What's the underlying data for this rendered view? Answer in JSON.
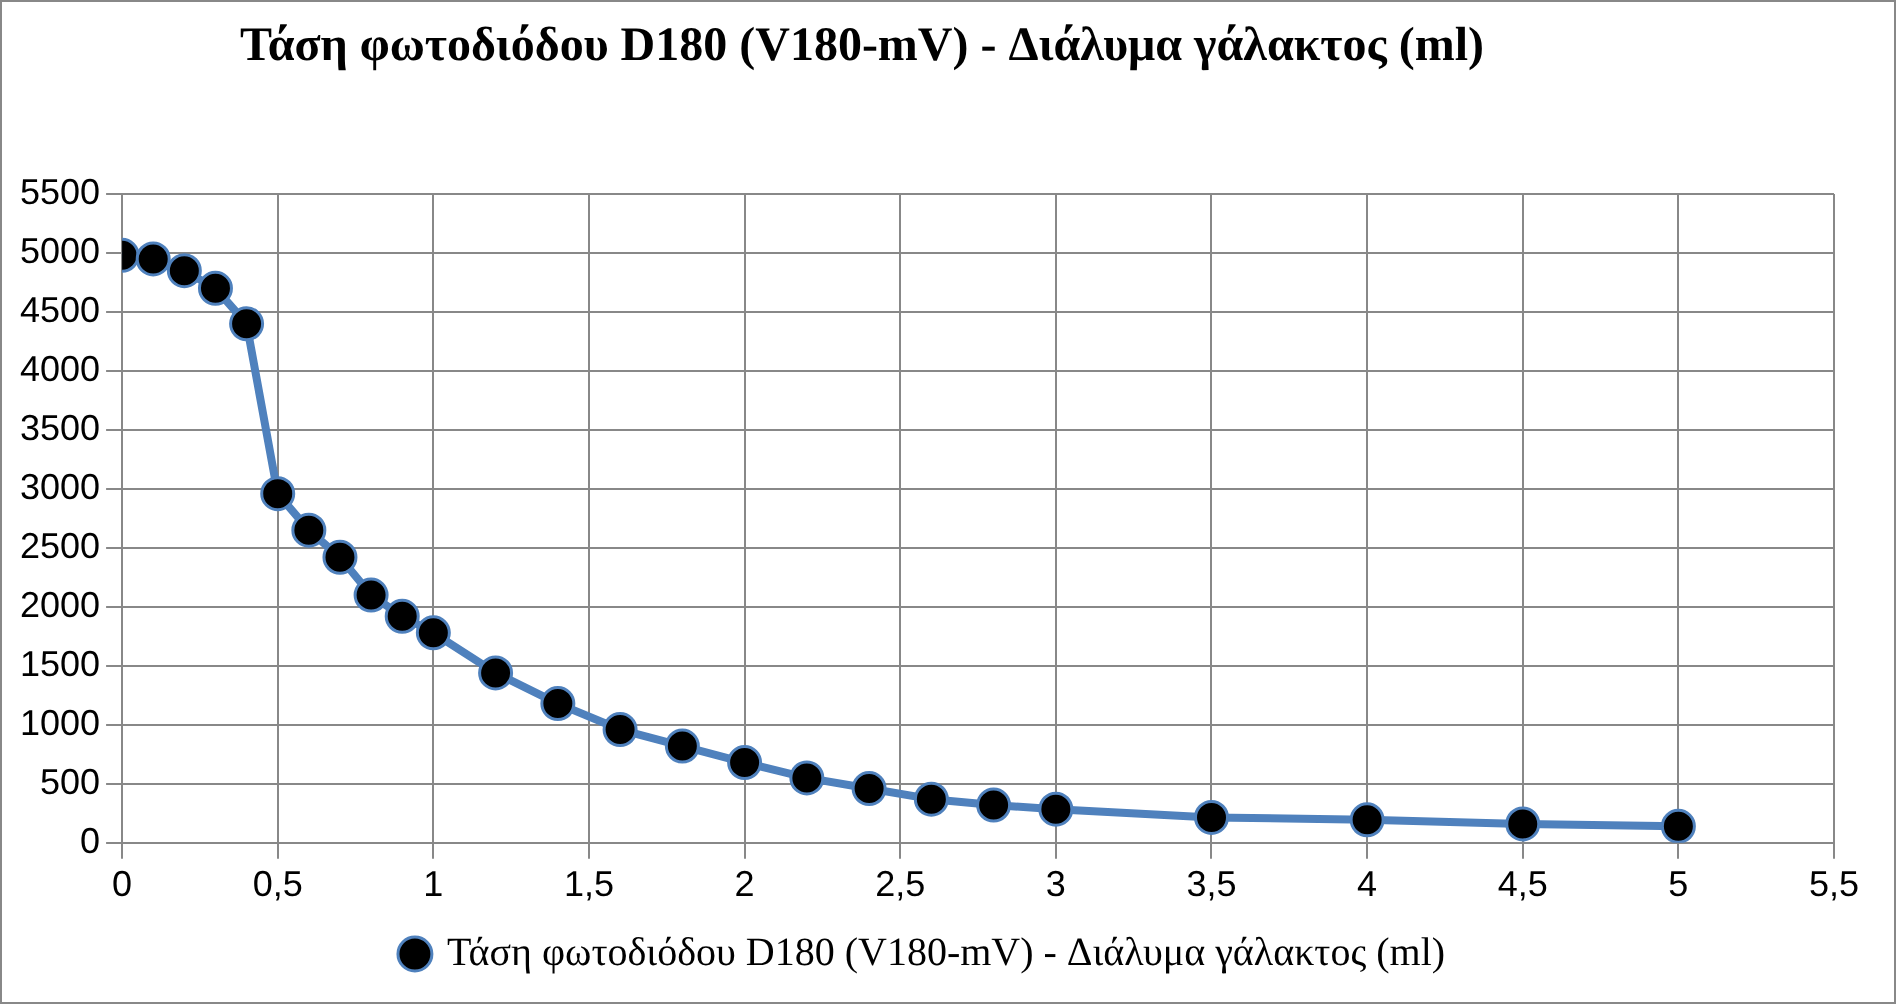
{
  "chart_data": {
    "type": "line",
    "title": "Τάση φωτοδιόδου D180 (V180-mV) - Διάλυμα γάλακτος (ml)",
    "x": [
      0,
      0.1,
      0.2,
      0.3,
      0.4,
      0.5,
      0.6,
      0.7,
      0.8,
      0.9,
      1.0,
      1.2,
      1.4,
      1.6,
      1.8,
      2.0,
      2.2,
      2.4,
      2.6,
      2.8,
      3.0,
      3.5,
      4,
      4.5,
      5
    ],
    "series": [
      {
        "name": "Τάση φωτοδιόδου D180 (V180-mV) - Διάλυμα γάλακτος (ml)",
        "color": "#4f81bd",
        "values": [
          4980,
          4950,
          4850,
          4700,
          4400,
          2960,
          2650,
          2420,
          2100,
          1920,
          1780,
          1440,
          1180,
          960,
          820,
          680,
          550,
          460,
          370,
          320,
          285,
          215,
          195,
          160,
          140
        ]
      }
    ],
    "xlim": [
      0,
      5.5
    ],
    "xticks": [
      0,
      {
        "value": 0.5,
        "label": "0,5"
      },
      1,
      {
        "value": 1.5,
        "label": "1,5"
      },
      2,
      {
        "value": 2.5,
        "label": "2,5"
      },
      3,
      {
        "value": 3.5,
        "label": "3,5"
      },
      4,
      {
        "value": 4.5,
        "label": "4,5"
      },
      5,
      {
        "value": 5.5,
        "label": "5,5"
      }
    ],
    "ylim": [
      0,
      5500
    ],
    "yticks": [
      0,
      500,
      1000,
      1500,
      2000,
      2500,
      3000,
      3500,
      4000,
      4500,
      5000,
      5500
    ],
    "grid": true,
    "legend": "bottom",
    "marker": "circle",
    "line_style": "solid"
  }
}
